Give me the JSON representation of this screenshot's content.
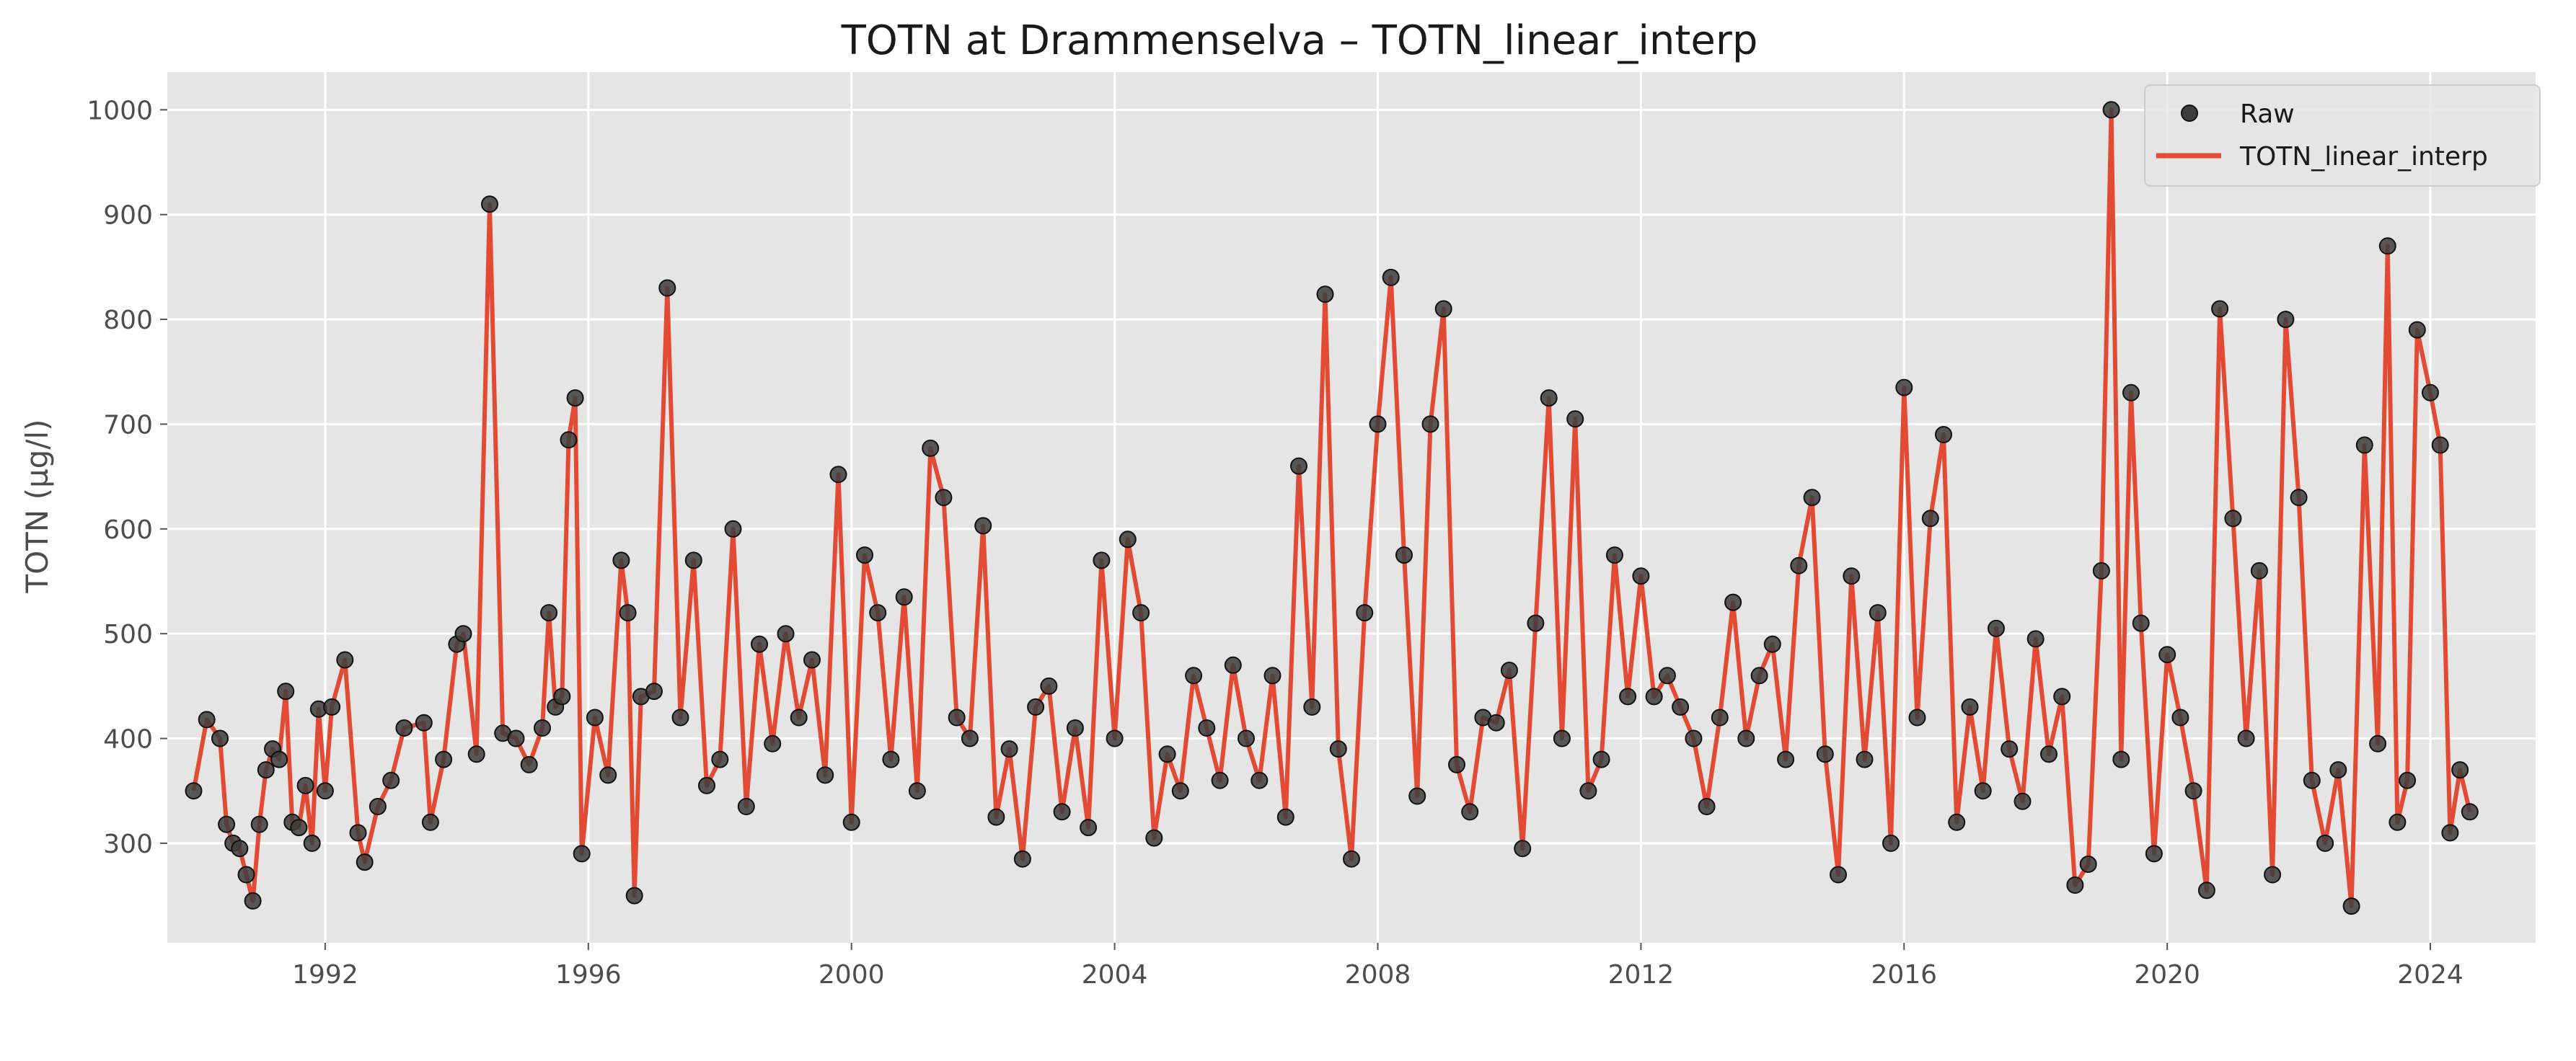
{
  "chart_data": {
    "type": "line",
    "title": "TOTN at Drammenselva – TOTN_linear_interp",
    "xlabel": "",
    "ylabel": "TOTN (µg/l)",
    "xlim": [
      1989.6,
      2025.6
    ],
    "ylim": [
      205,
      1036
    ],
    "x_ticks": [
      1992,
      1996,
      2000,
      2004,
      2008,
      2012,
      2016,
      2020,
      2024
    ],
    "x_tick_labels": [
      "1992",
      "1996",
      "2000",
      "2004",
      "2008",
      "2012",
      "2016",
      "2020",
      "2024"
    ],
    "y_ticks": [
      300,
      400,
      500,
      600,
      700,
      800,
      900,
      1000
    ],
    "y_tick_labels": [
      "300",
      "400",
      "500",
      "600",
      "700",
      "800",
      "900",
      "1000"
    ],
    "grid": true,
    "legend": {
      "position": "top-right",
      "entries": [
        {
          "label": "Raw",
          "marker": "circle",
          "color": "#3d3d3d"
        },
        {
          "label": "TOTN_linear_interp",
          "marker": "line",
          "color": "#e24a33"
        }
      ]
    },
    "colors": {
      "raw": "#3d3d3d",
      "interp": "#e24a33",
      "plot_bg": "#e5e5e5",
      "grid": "#ffffff"
    },
    "series": [
      {
        "name": "Raw",
        "style": "scatter",
        "x": [
          1990.0,
          1990.2,
          1990.4,
          1990.5,
          1990.6,
          1990.7,
          1990.8,
          1990.9,
          1991.0,
          1991.1,
          1991.2,
          1991.3,
          1991.4,
          1991.5,
          1991.6,
          1991.7,
          1991.8,
          1991.9,
          1992.0,
          1992.1,
          1992.3,
          1992.5,
          1992.6,
          1992.8,
          1993.0,
          1993.2,
          1993.5,
          1993.6,
          1993.8,
          1994.0,
          1994.1,
          1994.3,
          1994.5,
          1994.7,
          1994.9,
          1995.1,
          1995.3,
          1995.4,
          1995.5,
          1995.6,
          1995.7,
          1995.8,
          1995.9,
          1996.1,
          1996.3,
          1996.5,
          1996.6,
          1996.7,
          1996.8,
          1997.0,
          1997.2,
          1997.4,
          1997.6,
          1997.8,
          1998.0,
          1998.2,
          1998.4,
          1998.6,
          1998.8,
          1999.0,
          1999.2,
          1999.4,
          1999.6,
          1999.8,
          2000.0,
          2000.2,
          2000.4,
          2000.6,
          2000.8,
          2001.0,
          2001.2,
          2001.4,
          2001.6,
          2001.8,
          2002.0,
          2002.2,
          2002.4,
          2002.6,
          2002.8,
          2003.0,
          2003.2,
          2003.4,
          2003.6,
          2003.8,
          2004.0,
          2004.2,
          2004.4,
          2004.6,
          2004.8,
          2005.0,
          2005.2,
          2005.4,
          2005.6,
          2005.8,
          2006.0,
          2006.2,
          2006.4,
          2006.6,
          2006.8,
          2007.0,
          2007.2,
          2007.4,
          2007.6,
          2007.8,
          2008.0,
          2008.2,
          2008.4,
          2008.6,
          2008.8,
          2009.0,
          2009.2,
          2009.4,
          2009.6,
          2009.8,
          2010.0,
          2010.2,
          2010.4,
          2010.6,
          2010.8,
          2011.0,
          2011.2,
          2011.4,
          2011.6,
          2011.8,
          2012.0,
          2012.2,
          2012.4,
          2012.6,
          2012.8,
          2013.0,
          2013.2,
          2013.4,
          2013.6,
          2013.8,
          2014.0,
          2014.2,
          2014.4,
          2014.6,
          2014.8,
          2015.0,
          2015.2,
          2015.4,
          2015.6,
          2015.8,
          2016.0,
          2016.2,
          2016.4,
          2016.6,
          2016.8,
          2017.0,
          2017.2,
          2017.4,
          2017.6,
          2017.8,
          2018.0,
          2018.2,
          2018.4,
          2018.6,
          2018.8,
          2019.0,
          2019.15,
          2019.3,
          2019.45,
          2019.6,
          2019.8,
          2020.0,
          2020.2,
          2020.4,
          2020.6,
          2020.8,
          2021.0,
          2021.2,
          2021.4,
          2021.6,
          2021.8,
          2022.0,
          2022.2,
          2022.4,
          2022.6,
          2022.8,
          2023.0,
          2023.2,
          2023.35,
          2023.5,
          2023.65,
          2023.8,
          2024.0,
          2024.15,
          2024.3,
          2024.45,
          2024.6
        ],
        "y": [
          350,
          418,
          400,
          318,
          300,
          295,
          270,
          245,
          318,
          370,
          390,
          380,
          445,
          320,
          315,
          355,
          300,
          428,
          350,
          430,
          475,
          310,
          282,
          335,
          360,
          410,
          415,
          320,
          380,
          490,
          500,
          385,
          910,
          405,
          400,
          375,
          410,
          520,
          430,
          440,
          685,
          725,
          290,
          420,
          365,
          570,
          520,
          250,
          440,
          445,
          830,
          420,
          570,
          355,
          380,
          600,
          335,
          490,
          395,
          500,
          420,
          475,
          365,
          652,
          320,
          575,
          520,
          380,
          535,
          350,
          677,
          630,
          420,
          400,
          603,
          325,
          390,
          285,
          430,
          450,
          330,
          410,
          315,
          570,
          400,
          590,
          520,
          305,
          385,
          350,
          460,
          410,
          360,
          470,
          400,
          360,
          460,
          325,
          660,
          430,
          824,
          390,
          285,
          520,
          700,
          840,
          575,
          345,
          700,
          810,
          375,
          330,
          420,
          415,
          465,
          295,
          510,
          725,
          400,
          705,
          350,
          380,
          575,
          440,
          555,
          440,
          460,
          430,
          400,
          335,
          420,
          530,
          400,
          460,
          490,
          380,
          565,
          630,
          385,
          270,
          555,
          380,
          520,
          300,
          735,
          420,
          610,
          690,
          320,
          430,
          350,
          505,
          390,
          340,
          495,
          385,
          440,
          260,
          280,
          560,
          1000,
          380,
          730,
          510,
          290,
          480,
          420,
          350,
          255,
          810,
          610,
          400,
          560,
          270,
          800,
          630,
          360,
          300,
          370,
          240,
          680,
          395,
          870,
          320,
          360,
          790,
          730,
          680,
          310,
          370,
          330
        ]
      },
      {
        "name": "TOTN_linear_interp",
        "style": "line",
        "x": [
          1990.0,
          1990.2,
          1990.4,
          1990.5,
          1990.6,
          1990.7,
          1990.8,
          1990.9,
          1991.0,
          1991.1,
          1991.2,
          1991.3,
          1991.4,
          1991.5,
          1991.6,
          1991.7,
          1991.8,
          1991.9,
          1992.0,
          1992.1,
          1992.3,
          1992.5,
          1992.6,
          1992.8,
          1993.0,
          1993.2,
          1993.5,
          1993.6,
          1993.8,
          1994.0,
          1994.1,
          1994.3,
          1994.5,
          1994.7,
          1994.9,
          1995.1,
          1995.3,
          1995.4,
          1995.5,
          1995.6,
          1995.7,
          1995.8,
          1995.9,
          1996.1,
          1996.3,
          1996.5,
          1996.6,
          1996.7,
          1996.8,
          1997.0,
          1997.2,
          1997.4,
          1997.6,
          1997.8,
          1998.0,
          1998.2,
          1998.4,
          1998.6,
          1998.8,
          1999.0,
          1999.2,
          1999.4,
          1999.6,
          1999.8,
          2000.0,
          2000.2,
          2000.4,
          2000.6,
          2000.8,
          2001.0,
          2001.2,
          2001.4,
          2001.6,
          2001.8,
          2002.0,
          2002.2,
          2002.4,
          2002.6,
          2002.8,
          2003.0,
          2003.2,
          2003.4,
          2003.6,
          2003.8,
          2004.0,
          2004.2,
          2004.4,
          2004.6,
          2004.8,
          2005.0,
          2005.2,
          2005.4,
          2005.6,
          2005.8,
          2006.0,
          2006.2,
          2006.4,
          2006.6,
          2006.8,
          2007.0,
          2007.2,
          2007.4,
          2007.6,
          2007.8,
          2008.0,
          2008.2,
          2008.4,
          2008.6,
          2008.8,
          2009.0,
          2009.2,
          2009.4,
          2009.6,
          2009.8,
          2010.0,
          2010.2,
          2010.4,
          2010.6,
          2010.8,
          2011.0,
          2011.2,
          2011.4,
          2011.6,
          2011.8,
          2012.0,
          2012.2,
          2012.4,
          2012.6,
          2012.8,
          2013.0,
          2013.2,
          2013.4,
          2013.6,
          2013.8,
          2014.0,
          2014.2,
          2014.4,
          2014.6,
          2014.8,
          2015.0,
          2015.2,
          2015.4,
          2015.6,
          2015.8,
          2016.0,
          2016.2,
          2016.4,
          2016.6,
          2016.8,
          2017.0,
          2017.2,
          2017.4,
          2017.6,
          2017.8,
          2018.0,
          2018.2,
          2018.4,
          2018.6,
          2018.8,
          2019.0,
          2019.15,
          2019.3,
          2019.45,
          2019.6,
          2019.8,
          2020.0,
          2020.2,
          2020.4,
          2020.6,
          2020.8,
          2021.0,
          2021.2,
          2021.4,
          2021.6,
          2021.8,
          2022.0,
          2022.2,
          2022.4,
          2022.6,
          2022.8,
          2023.0,
          2023.2,
          2023.35,
          2023.5,
          2023.65,
          2023.8,
          2024.0,
          2024.15,
          2024.3,
          2024.45,
          2024.6
        ],
        "y": [
          350,
          418,
          400,
          318,
          300,
          295,
          270,
          245,
          318,
          370,
          390,
          380,
          445,
          320,
          315,
          355,
          300,
          428,
          350,
          430,
          475,
          310,
          282,
          335,
          360,
          410,
          415,
          320,
          380,
          490,
          500,
          385,
          910,
          405,
          400,
          375,
          410,
          520,
          430,
          440,
          685,
          725,
          290,
          420,
          365,
          570,
          520,
          250,
          440,
          445,
          830,
          420,
          570,
          355,
          380,
          600,
          335,
          490,
          395,
          500,
          420,
          475,
          365,
          652,
          320,
          575,
          520,
          380,
          535,
          350,
          677,
          630,
          420,
          400,
          603,
          325,
          390,
          285,
          430,
          450,
          330,
          410,
          315,
          570,
          400,
          590,
          520,
          305,
          385,
          350,
          460,
          410,
          360,
          470,
          400,
          360,
          460,
          325,
          660,
          430,
          824,
          390,
          285,
          520,
          700,
          840,
          575,
          345,
          700,
          810,
          375,
          330,
          420,
          415,
          465,
          295,
          510,
          725,
          400,
          705,
          350,
          380,
          575,
          440,
          555,
          440,
          460,
          430,
          400,
          335,
          420,
          530,
          400,
          460,
          490,
          380,
          565,
          630,
          385,
          270,
          555,
          380,
          520,
          300,
          735,
          420,
          610,
          690,
          320,
          430,
          350,
          505,
          390,
          340,
          495,
          385,
          440,
          260,
          280,
          560,
          1000,
          380,
          730,
          510,
          290,
          480,
          420,
          350,
          255,
          810,
          610,
          400,
          560,
          270,
          800,
          630,
          360,
          300,
          370,
          240,
          680,
          395,
          870,
          320,
          360,
          790,
          730,
          680,
          310,
          370,
          330
        ]
      }
    ]
  }
}
